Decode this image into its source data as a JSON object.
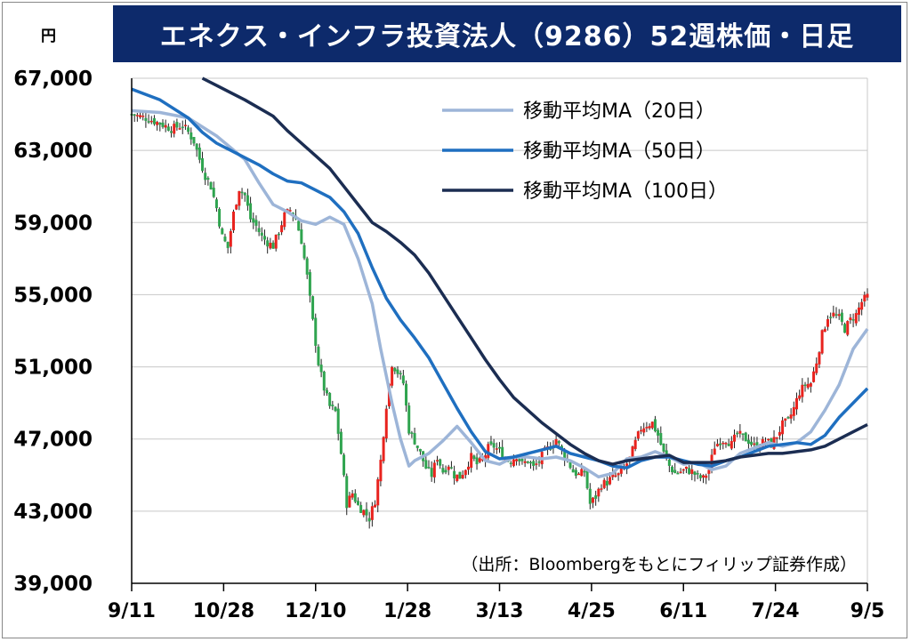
{
  "chart_data": {
    "type": "line",
    "title": "エネクス・インフラ投資法人（9286）52週株価・日足",
    "unit": "円",
    "source": "（出所：Bloombergをもとにフィリップ証券作成）",
    "ylim": [
      39000,
      67000
    ],
    "y_ticks": [
      "67,000",
      "63,000",
      "59,000",
      "55,000",
      "51,000",
      "47,000",
      "43,000",
      "39,000"
    ],
    "y_tick_values": [
      67000,
      63000,
      59000,
      55000,
      51000,
      47000,
      43000,
      39000
    ],
    "x_tick_labels": [
      "9/11",
      "10/28",
      "12/10",
      "1/28",
      "3/13",
      "4/25",
      "6/11",
      "7/24",
      "9/5"
    ],
    "grid": true,
    "legend_position": "top-right",
    "series": [
      {
        "name": "移動平均MA（20日）",
        "color": "#9db5d8",
        "values": [
          [
            0,
            65200
          ],
          [
            10,
            65100
          ],
          [
            20,
            64800
          ],
          [
            30,
            63800
          ],
          [
            40,
            62500
          ],
          [
            45,
            61200
          ],
          [
            50,
            60000
          ],
          [
            55,
            59600
          ],
          [
            60,
            59100
          ],
          [
            65,
            58900
          ],
          [
            70,
            59300
          ],
          [
            75,
            58900
          ],
          [
            80,
            57000
          ],
          [
            85,
            54500
          ],
          [
            88,
            52000
          ],
          [
            92,
            49000
          ],
          [
            95,
            47000
          ],
          [
            98,
            45500
          ],
          [
            100,
            45800
          ],
          [
            105,
            46200
          ],
          [
            110,
            46900
          ],
          [
            115,
            47700
          ],
          [
            120,
            46800
          ],
          [
            125,
            45800
          ],
          [
            130,
            45600
          ],
          [
            135,
            46000
          ],
          [
            140,
            46000
          ],
          [
            145,
            45900
          ],
          [
            150,
            46000
          ],
          [
            155,
            45800
          ],
          [
            160,
            45400
          ],
          [
            165,
            44900
          ],
          [
            170,
            45100
          ],
          [
            175,
            45900
          ],
          [
            180,
            46000
          ],
          [
            185,
            46300
          ],
          [
            190,
            46000
          ],
          [
            195,
            45600
          ],
          [
            200,
            45700
          ],
          [
            205,
            45300
          ],
          [
            210,
            45500
          ],
          [
            215,
            46200
          ],
          [
            220,
            46500
          ],
          [
            225,
            46800
          ],
          [
            230,
            46600
          ],
          [
            235,
            46800
          ],
          [
            240,
            47400
          ],
          [
            245,
            48600
          ],
          [
            250,
            50000
          ],
          [
            255,
            52000
          ],
          [
            260,
            53100
          ]
        ]
      },
      {
        "name": "移動平均MA（50日）",
        "color": "#1f6fc0",
        "values": [
          [
            0,
            66400
          ],
          [
            10,
            65800
          ],
          [
            20,
            64800
          ],
          [
            25,
            64000
          ],
          [
            30,
            63400
          ],
          [
            35,
            63000
          ],
          [
            40,
            62600
          ],
          [
            45,
            62200
          ],
          [
            50,
            61700
          ],
          [
            55,
            61300
          ],
          [
            60,
            61200
          ],
          [
            65,
            60800
          ],
          [
            70,
            60400
          ],
          [
            75,
            59600
          ],
          [
            80,
            58400
          ],
          [
            85,
            56500
          ],
          [
            90,
            54800
          ],
          [
            95,
            53600
          ],
          [
            100,
            52600
          ],
          [
            105,
            51500
          ],
          [
            110,
            50100
          ],
          [
            115,
            48700
          ],
          [
            120,
            47400
          ],
          [
            125,
            46300
          ],
          [
            130,
            45900
          ],
          [
            135,
            46000
          ],
          [
            140,
            46200
          ],
          [
            145,
            46400
          ],
          [
            150,
            46600
          ],
          [
            155,
            46200
          ],
          [
            160,
            46000
          ],
          [
            165,
            45800
          ],
          [
            170,
            45500
          ],
          [
            175,
            45400
          ],
          [
            180,
            45800
          ],
          [
            185,
            46000
          ],
          [
            190,
            46000
          ],
          [
            195,
            45800
          ],
          [
            200,
            45600
          ],
          [
            205,
            45500
          ],
          [
            210,
            45800
          ],
          [
            215,
            46000
          ],
          [
            220,
            46300
          ],
          [
            225,
            46600
          ],
          [
            230,
            46700
          ],
          [
            235,
            46800
          ],
          [
            240,
            46700
          ],
          [
            245,
            47200
          ],
          [
            250,
            48200
          ],
          [
            255,
            49000
          ],
          [
            260,
            49800
          ]
        ]
      },
      {
        "name": "移動平均MA（100日）",
        "color": "#1b2d52",
        "values": [
          [
            25,
            67000
          ],
          [
            30,
            66600
          ],
          [
            40,
            65800
          ],
          [
            50,
            64900
          ],
          [
            55,
            64100
          ],
          [
            60,
            63400
          ],
          [
            65,
            62700
          ],
          [
            70,
            62000
          ],
          [
            75,
            61000
          ],
          [
            80,
            60000
          ],
          [
            85,
            59000
          ],
          [
            90,
            58500
          ],
          [
            95,
            57900
          ],
          [
            100,
            57200
          ],
          [
            105,
            56200
          ],
          [
            110,
            55000
          ],
          [
            115,
            53800
          ],
          [
            120,
            52600
          ],
          [
            125,
            51400
          ],
          [
            130,
            50300
          ],
          [
            135,
            49300
          ],
          [
            140,
            48600
          ],
          [
            145,
            47900
          ],
          [
            150,
            47300
          ],
          [
            155,
            46700
          ],
          [
            160,
            46200
          ],
          [
            165,
            45800
          ],
          [
            170,
            45600
          ],
          [
            175,
            45800
          ],
          [
            180,
            45900
          ],
          [
            185,
            46000
          ],
          [
            190,
            46100
          ],
          [
            195,
            45700
          ],
          [
            200,
            45700
          ],
          [
            205,
            45700
          ],
          [
            210,
            45800
          ],
          [
            215,
            46000
          ],
          [
            220,
            46100
          ],
          [
            225,
            46200
          ],
          [
            230,
            46200
          ],
          [
            235,
            46300
          ],
          [
            240,
            46400
          ],
          [
            245,
            46600
          ],
          [
            250,
            47000
          ],
          [
            255,
            47400
          ],
          [
            260,
            47800
          ]
        ]
      }
    ],
    "price_path": [
      [
        0,
        65000
      ],
      [
        5,
        64800
      ],
      [
        10,
        64500
      ],
      [
        14,
        64200
      ],
      [
        18,
        64400
      ],
      [
        20,
        64000
      ],
      [
        22,
        63500
      ],
      [
        24,
        62500
      ],
      [
        26,
        61600
      ],
      [
        28,
        61000
      ],
      [
        30,
        59800
      ],
      [
        32,
        58200
      ],
      [
        34,
        57600
      ],
      [
        36,
        59500
      ],
      [
        38,
        60900
      ],
      [
        40,
        60500
      ],
      [
        42,
        59200
      ],
      [
        44,
        58800
      ],
      [
        46,
        58200
      ],
      [
        48,
        57900
      ],
      [
        50,
        57700
      ],
      [
        52,
        58500
      ],
      [
        54,
        59400
      ],
      [
        56,
        59700
      ],
      [
        58,
        59200
      ],
      [
        60,
        58000
      ],
      [
        62,
        56000
      ],
      [
        64,
        53500
      ],
      [
        66,
        51200
      ],
      [
        68,
        49800
      ],
      [
        70,
        48800
      ],
      [
        72,
        48500
      ],
      [
        74,
        46200
      ],
      [
        76,
        43400
      ],
      [
        78,
        44000
      ],
      [
        80,
        43300
      ],
      [
        82,
        43000
      ],
      [
        84,
        42600
      ],
      [
        86,
        43600
      ],
      [
        88,
        45800
      ],
      [
        90,
        48900
      ],
      [
        92,
        51200
      ],
      [
        94,
        50700
      ],
      [
        96,
        50100
      ],
      [
        98,
        47500
      ],
      [
        100,
        46900
      ],
      [
        102,
        46200
      ],
      [
        104,
        45400
      ],
      [
        106,
        45000
      ],
      [
        108,
        46000
      ],
      [
        110,
        45200
      ],
      [
        112,
        45600
      ],
      [
        114,
        45000
      ],
      [
        116,
        44900
      ],
      [
        118,
        45400
      ],
      [
        120,
        46000
      ],
      [
        122,
        45600
      ],
      [
        124,
        45800
      ],
      [
        126,
        46500
      ],
      [
        128,
        46600
      ],
      [
        130,
        46300
      ],
      [
        132,
        45900
      ],
      [
        134,
        45800
      ],
      [
        136,
        46100
      ],
      [
        138,
        45600
      ],
      [
        140,
        45800
      ],
      [
        142,
        45400
      ],
      [
        144,
        45800
      ],
      [
        146,
        46300
      ],
      [
        148,
        46600
      ],
      [
        150,
        47000
      ],
      [
        152,
        46300
      ],
      [
        154,
        45800
      ],
      [
        156,
        45200
      ],
      [
        158,
        45000
      ],
      [
        160,
        45200
      ],
      [
        162,
        43400
      ],
      [
        164,
        43800
      ],
      [
        166,
        44500
      ],
      [
        168,
        44600
      ],
      [
        170,
        44900
      ],
      [
        172,
        45000
      ],
      [
        174,
        45400
      ],
      [
        176,
        45900
      ],
      [
        178,
        46800
      ],
      [
        180,
        47600
      ],
      [
        182,
        47800
      ],
      [
        184,
        47900
      ],
      [
        186,
        47200
      ],
      [
        188,
        46200
      ],
      [
        190,
        45500
      ],
      [
        192,
        45100
      ],
      [
        194,
        45200
      ],
      [
        196,
        45300
      ],
      [
        198,
        45200
      ],
      [
        200,
        44900
      ],
      [
        202,
        44800
      ],
      [
        204,
        45300
      ],
      [
        206,
        46600
      ],
      [
        208,
        46900
      ],
      [
        210,
        47000
      ],
      [
        212,
        46700
      ],
      [
        214,
        47300
      ],
      [
        216,
        47100
      ],
      [
        218,
        46900
      ],
      [
        220,
        46600
      ],
      [
        222,
        46700
      ],
      [
        224,
        46900
      ],
      [
        226,
        46700
      ],
      [
        228,
        47200
      ],
      [
        230,
        47800
      ],
      [
        232,
        48000
      ],
      [
        234,
        48700
      ],
      [
        236,
        49600
      ],
      [
        238,
        50000
      ],
      [
        240,
        50100
      ],
      [
        242,
        51300
      ],
      [
        244,
        52800
      ],
      [
        246,
        53800
      ],
      [
        248,
        53900
      ],
      [
        250,
        53700
      ],
      [
        252,
        53100
      ],
      [
        254,
        53600
      ],
      [
        256,
        53900
      ],
      [
        258,
        54600
      ],
      [
        260,
        54900
      ]
    ]
  }
}
